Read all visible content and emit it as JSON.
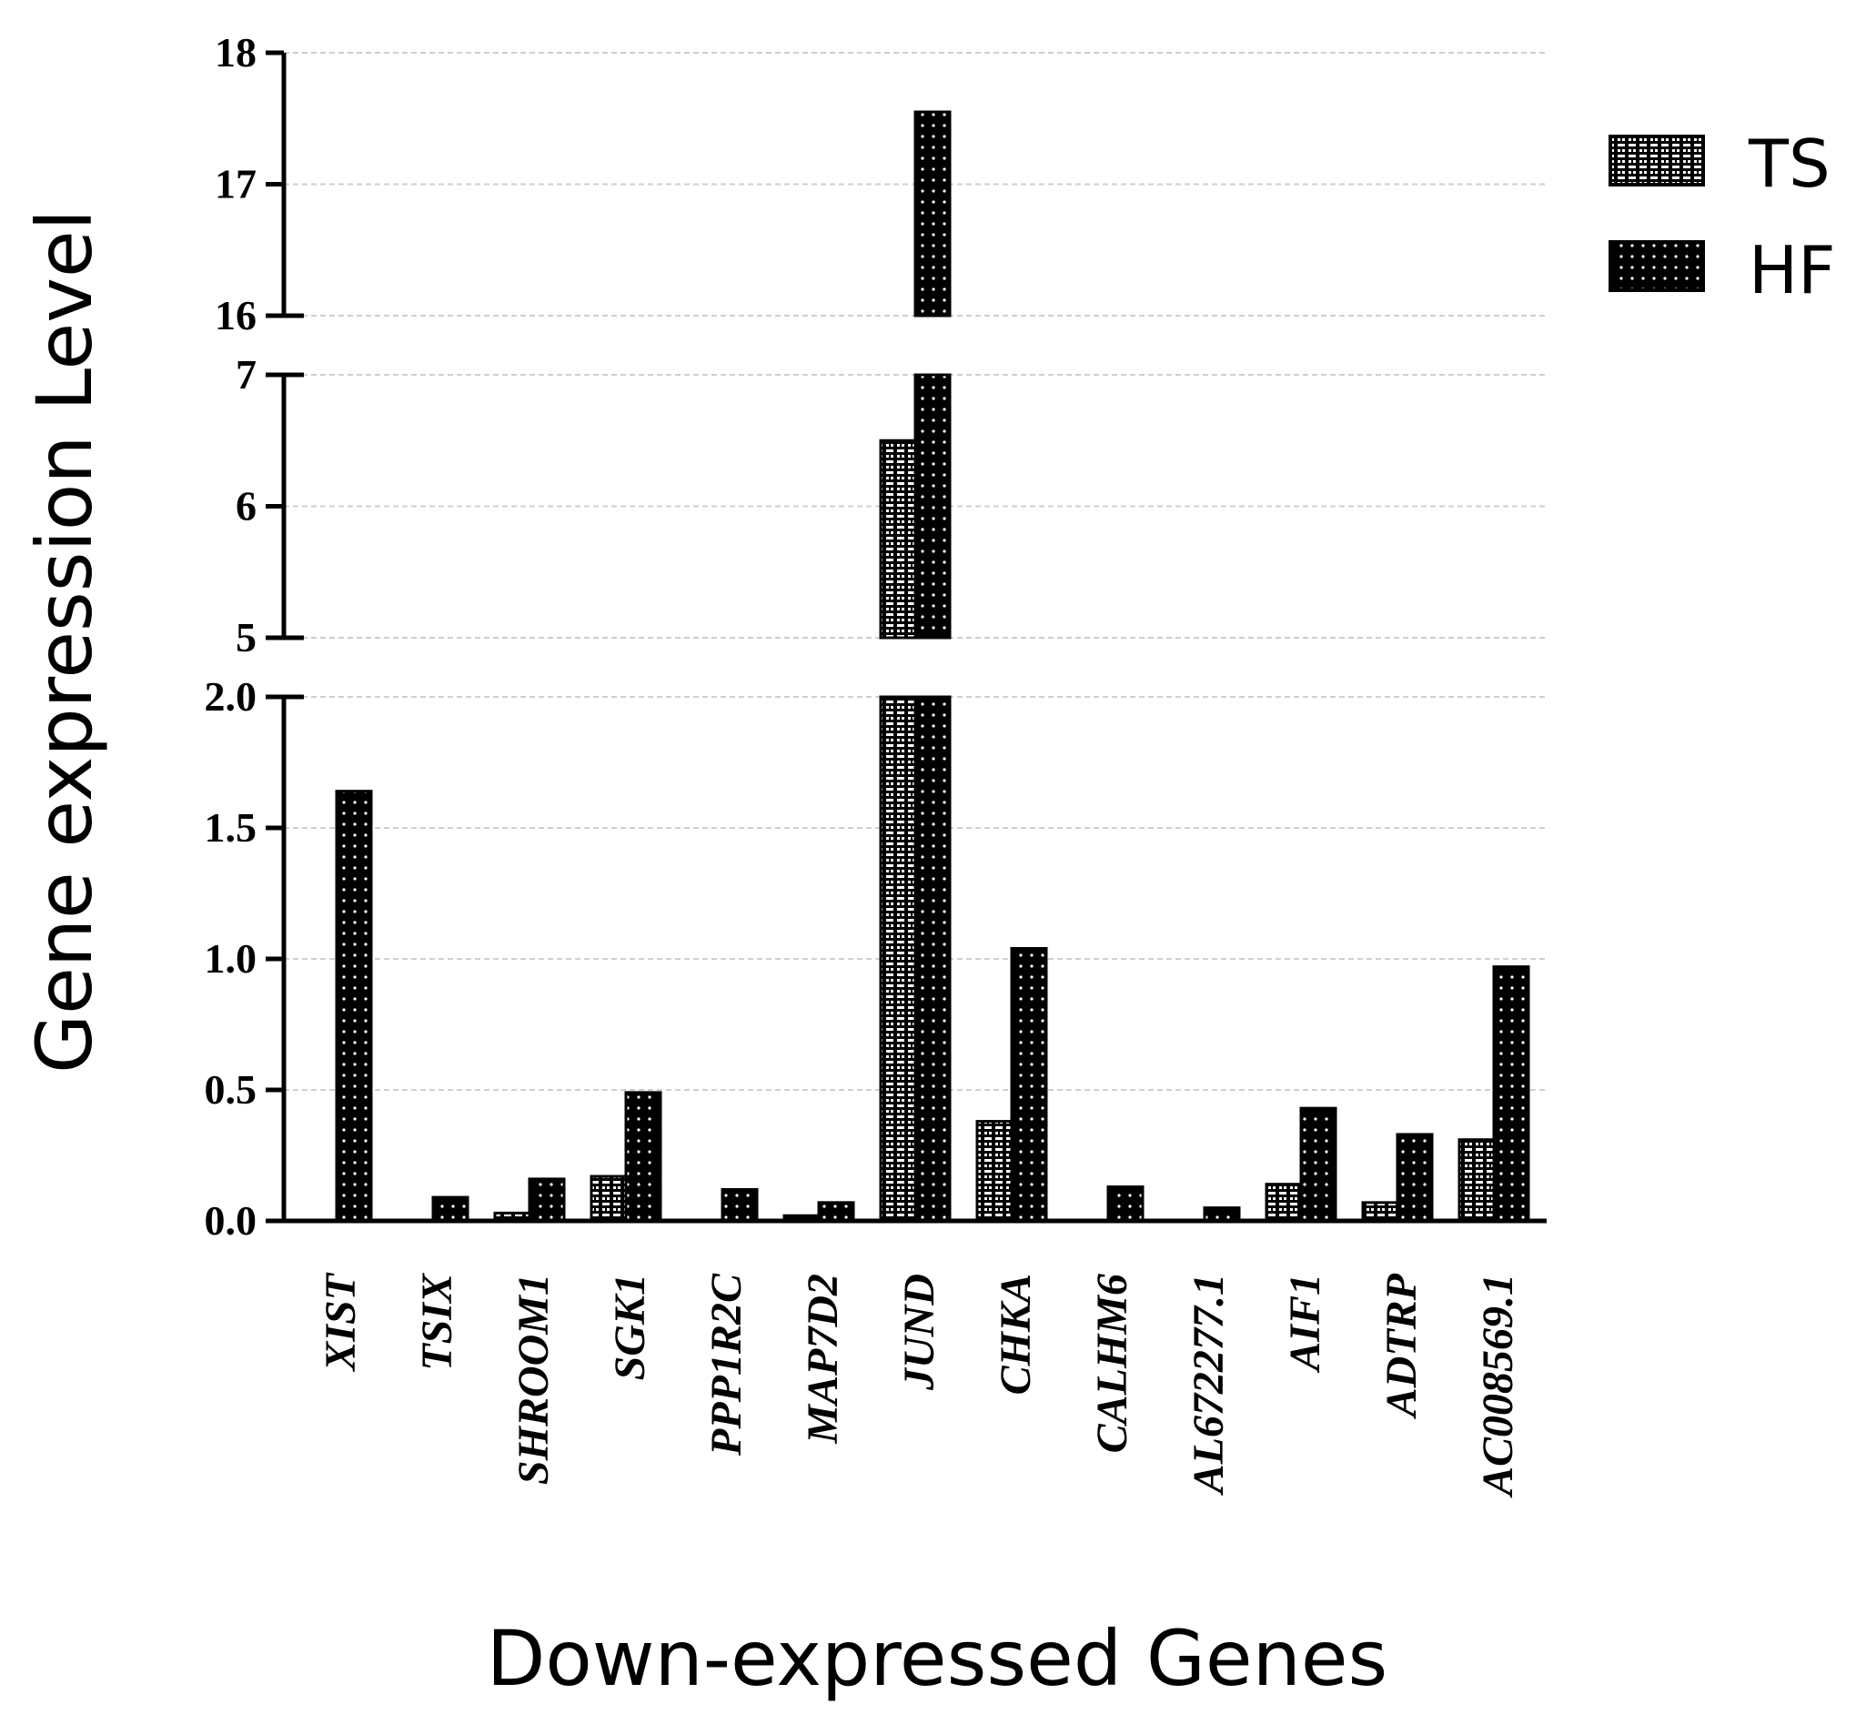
{
  "chart_data": {
    "type": "bar",
    "title": "",
    "xlabel": "Down-expressed Genes",
    "ylabel": "Gene expression Level",
    "categories": [
      "XIST",
      "TSIX",
      "SHROOM1",
      "SGK1",
      "PPP1R2C",
      "MAP7D2",
      "JUND",
      "CHKA",
      "CALHM6",
      "AL672277.1",
      "AIF1",
      "ADTRP",
      "AC008569.1"
    ],
    "series": [
      {
        "name": "TS",
        "pattern": "hatched",
        "values": [
          0,
          0,
          0.03,
          0.17,
          0,
          0.02,
          6.5,
          0.38,
          0,
          0,
          0.14,
          0.07,
          0.31
        ]
      },
      {
        "name": "HF",
        "pattern": "dotted",
        "values": [
          1.64,
          0.09,
          0.16,
          0.49,
          0.12,
          0.07,
          17.55,
          1.04,
          0.13,
          0.05,
          0.43,
          0.33,
          0.97
        ]
      }
    ],
    "y_axis_segments": [
      {
        "range": [
          0,
          2.0
        ],
        "ticks": [
          "0.0",
          "0.5",
          "1.0",
          "1.5",
          "2.0"
        ]
      },
      {
        "range": [
          5,
          7
        ],
        "ticks": [
          "5",
          "6",
          "7"
        ]
      },
      {
        "range": [
          16,
          18
        ],
        "ticks": [
          "16",
          "17",
          "18"
        ]
      }
    ],
    "grid": true,
    "legend_position": "top-right",
    "colors": {
      "bar": "#000000",
      "background": "#ffffff",
      "grid": "#cfcfcf"
    }
  }
}
